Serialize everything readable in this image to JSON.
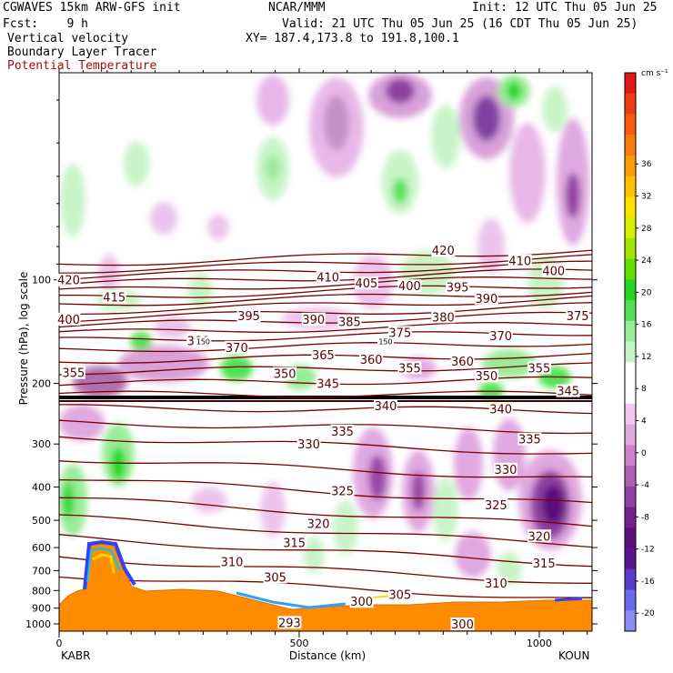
{
  "header": {
    "model": "CGWAVES 15km ARW-GFS init",
    "org": "NCAR/MMM",
    "init": "Init: 12 UTC Thu 05 Jun 25",
    "fcst": "Fcst:    9 h",
    "valid": "Valid: 21 UTC Thu 05 Jun 25 (16 CDT Thu 05 Jun 25)",
    "line_vv": "Vertical velocity",
    "line_xy": "XY= 187.4,173.8 to 191.8,100.1",
    "line_blt": "Boundary Layer Tracer",
    "line_pt": "Potential Temperature"
  },
  "chart_data": {
    "type": "heatmap",
    "title": "Vertical velocity / Boundary Layer Tracer / Potential Temperature",
    "xlabel": "Distance (km)",
    "ylabel": "Pressure (hPa), log scale",
    "xlim": [
      0,
      1110
    ],
    "ylim": [
      1050,
      25
    ],
    "x_ticks": [
      0,
      500,
      1000
    ],
    "y_ticks": [
      100,
      200,
      300,
      400,
      500,
      600,
      700,
      800,
      900,
      1000
    ],
    "endpoints": {
      "left": "KABR",
      "right": "KOUN"
    },
    "colorbar": {
      "units": "cm s⁻¹",
      "tick_labels": [
        36,
        32,
        28,
        24,
        20,
        16,
        12,
        8,
        4,
        0,
        -4,
        -8,
        -12,
        -16,
        -20
      ],
      "colors": [
        "#e01818",
        "#f03c14",
        "#f85a10",
        "#fb7a0e",
        "#fd9a0a",
        "#ffc000",
        "#ffe100",
        "#d2f000",
        "#a0e600",
        "#5ee000",
        "#1fd81f",
        "#52e052",
        "#98ec98",
        "#c8f4c8",
        "#ffffff",
        "#ffffff",
        "#f0c8f0",
        "#e0a8e0",
        "#cc82cc",
        "#b060b0",
        "#9040a0",
        "#74208c",
        "#5a107a",
        "#5a1490",
        "#5a3ac8",
        "#6a6af0",
        "#8a8af8"
      ]
    },
    "theta_labels": [
      {
        "v": 420,
        "x": 20,
        "p": 100
      },
      {
        "v": 415,
        "x": 115,
        "p": 112
      },
      {
        "v": 400,
        "x": 20,
        "p": 130
      },
      {
        "v": 380,
        "x": 290,
        "p": 150
      },
      {
        "v": 370,
        "x": 370,
        "p": 157
      },
      {
        "v": 355,
        "x": 30,
        "p": 186
      },
      {
        "v": 395,
        "x": 395,
        "p": 127
      },
      {
        "v": 390,
        "x": 530,
        "p": 130
      },
      {
        "v": 385,
        "x": 605,
        "p": 132
      },
      {
        "v": 410,
        "x": 560,
        "p": 98
      },
      {
        "v": 405,
        "x": 640,
        "p": 102
      },
      {
        "v": 400,
        "x": 730,
        "p": 104
      },
      {
        "v": 395,
        "x": 830,
        "p": 105
      },
      {
        "v": 420,
        "x": 800,
        "p": 82
      },
      {
        "v": 410,
        "x": 960,
        "p": 88
      },
      {
        "v": 400,
        "x": 1030,
        "p": 94
      },
      {
        "v": 390,
        "x": 890,
        "p": 113
      },
      {
        "v": 380,
        "x": 800,
        "p": 128
      },
      {
        "v": 375,
        "x": 710,
        "p": 142
      },
      {
        "v": 370,
        "x": 920,
        "p": 145
      },
      {
        "v": 375,
        "x": 1080,
        "p": 127
      },
      {
        "v": 365,
        "x": 550,
        "p": 165
      },
      {
        "v": 360,
        "x": 650,
        "p": 170
      },
      {
        "v": 355,
        "x": 730,
        "p": 180
      },
      {
        "v": 360,
        "x": 840,
        "p": 172
      },
      {
        "v": 355,
        "x": 1000,
        "p": 180
      },
      {
        "v": 350,
        "x": 470,
        "p": 187
      },
      {
        "v": 345,
        "x": 560,
        "p": 200
      },
      {
        "v": 350,
        "x": 890,
        "p": 190
      },
      {
        "v": 345,
        "x": 1060,
        "p": 210
      },
      {
        "v": 340,
        "x": 680,
        "p": 232
      },
      {
        "v": 340,
        "x": 920,
        "p": 237
      },
      {
        "v": 335,
        "x": 590,
        "p": 275
      },
      {
        "v": 335,
        "x": 980,
        "p": 290
      },
      {
        "v": 330,
        "x": 520,
        "p": 300
      },
      {
        "v": 330,
        "x": 930,
        "p": 355
      },
      {
        "v": 325,
        "x": 590,
        "p": 410
      },
      {
        "v": 325,
        "x": 910,
        "p": 450
      },
      {
        "v": 320,
        "x": 540,
        "p": 510
      },
      {
        "v": 320,
        "x": 1000,
        "p": 555
      },
      {
        "v": 315,
        "x": 490,
        "p": 580
      },
      {
        "v": 315,
        "x": 1010,
        "p": 665
      },
      {
        "v": 310,
        "x": 360,
        "p": 660
      },
      {
        "v": 310,
        "x": 910,
        "p": 760
      },
      {
        "v": 305,
        "x": 450,
        "p": 730
      },
      {
        "v": 305,
        "x": 710,
        "p": 820
      },
      {
        "v": 300,
        "x": 630,
        "p": 860
      },
      {
        "v": 300,
        "x": 840,
        "p": 1000
      },
      {
        "v": 293,
        "x": 480,
        "p": 990
      }
    ],
    "small_labels": [
      {
        "text": "150",
        "x": 300,
        "p": 151
      },
      {
        "text": "150",
        "x": 680,
        "p": 151
      }
    ],
    "grid": false
  }
}
